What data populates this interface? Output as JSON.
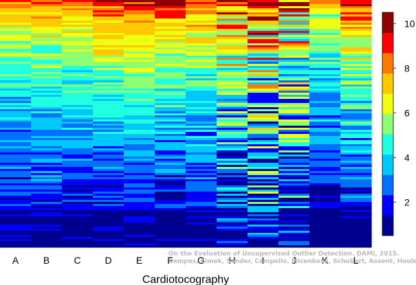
{
  "chart_data": {
    "type": "heatmap",
    "xlabel": "Cardiotocography",
    "categories": [
      "A",
      "B",
      "C",
      "D",
      "E",
      "F",
      "G",
      "H",
      "I",
      "J",
      "K",
      "L"
    ],
    "colorbar": {
      "ticks": [
        2,
        4,
        6,
        8,
        10
      ],
      "range": [
        0.5,
        10.5
      ],
      "colors": [
        "#00008f",
        "#0000ff",
        "#0070ff",
        "#00c8ff",
        "#20ffdf",
        "#8cff73",
        "#efff10",
        "#ffc800",
        "#ff7a00",
        "#ff0000",
        "#8f0000"
      ]
    },
    "rows": 120,
    "column_profiles": [
      {
        "column": "A",
        "top": 8.5,
        "bottom": 1.0,
        "noise": 1.0
      },
      {
        "column": "B",
        "top": 9.0,
        "bottom": 1.0,
        "noise": 1.0
      },
      {
        "column": "C",
        "top": 8.8,
        "bottom": 1.0,
        "noise": 0.9
      },
      {
        "column": "D",
        "top": 9.8,
        "bottom": 1.0,
        "noise": 1.0
      },
      {
        "column": "E",
        "top": 10.0,
        "bottom": 1.0,
        "noise": 0.7
      },
      {
        "column": "F",
        "top": 10.0,
        "bottom": 1.0,
        "noise": 1.2
      },
      {
        "column": "G",
        "top": 9.2,
        "bottom": 1.0,
        "noise": 1.2
      },
      {
        "column": "H",
        "top": 9.5,
        "bottom": 1.4,
        "noise": 2.6
      },
      {
        "column": "I",
        "top": 9.5,
        "bottom": 1.8,
        "noise": 3.4
      },
      {
        "column": "J",
        "top": 9.0,
        "bottom": 1.4,
        "noise": 3.0
      },
      {
        "column": "K",
        "top": 7.5,
        "bottom": 1.0,
        "noise": 1.2
      },
      {
        "column": "L",
        "top": 10.0,
        "bottom": 1.0,
        "noise": 1.4
      }
    ]
  },
  "credit": {
    "line1": "On the Evaluation of Unsupervised Outlier Detection. DAMI, 2015.",
    "line2": "Campos, Zimek, Sander, Campello, Micenková, Schubert, Assent, Houle"
  }
}
